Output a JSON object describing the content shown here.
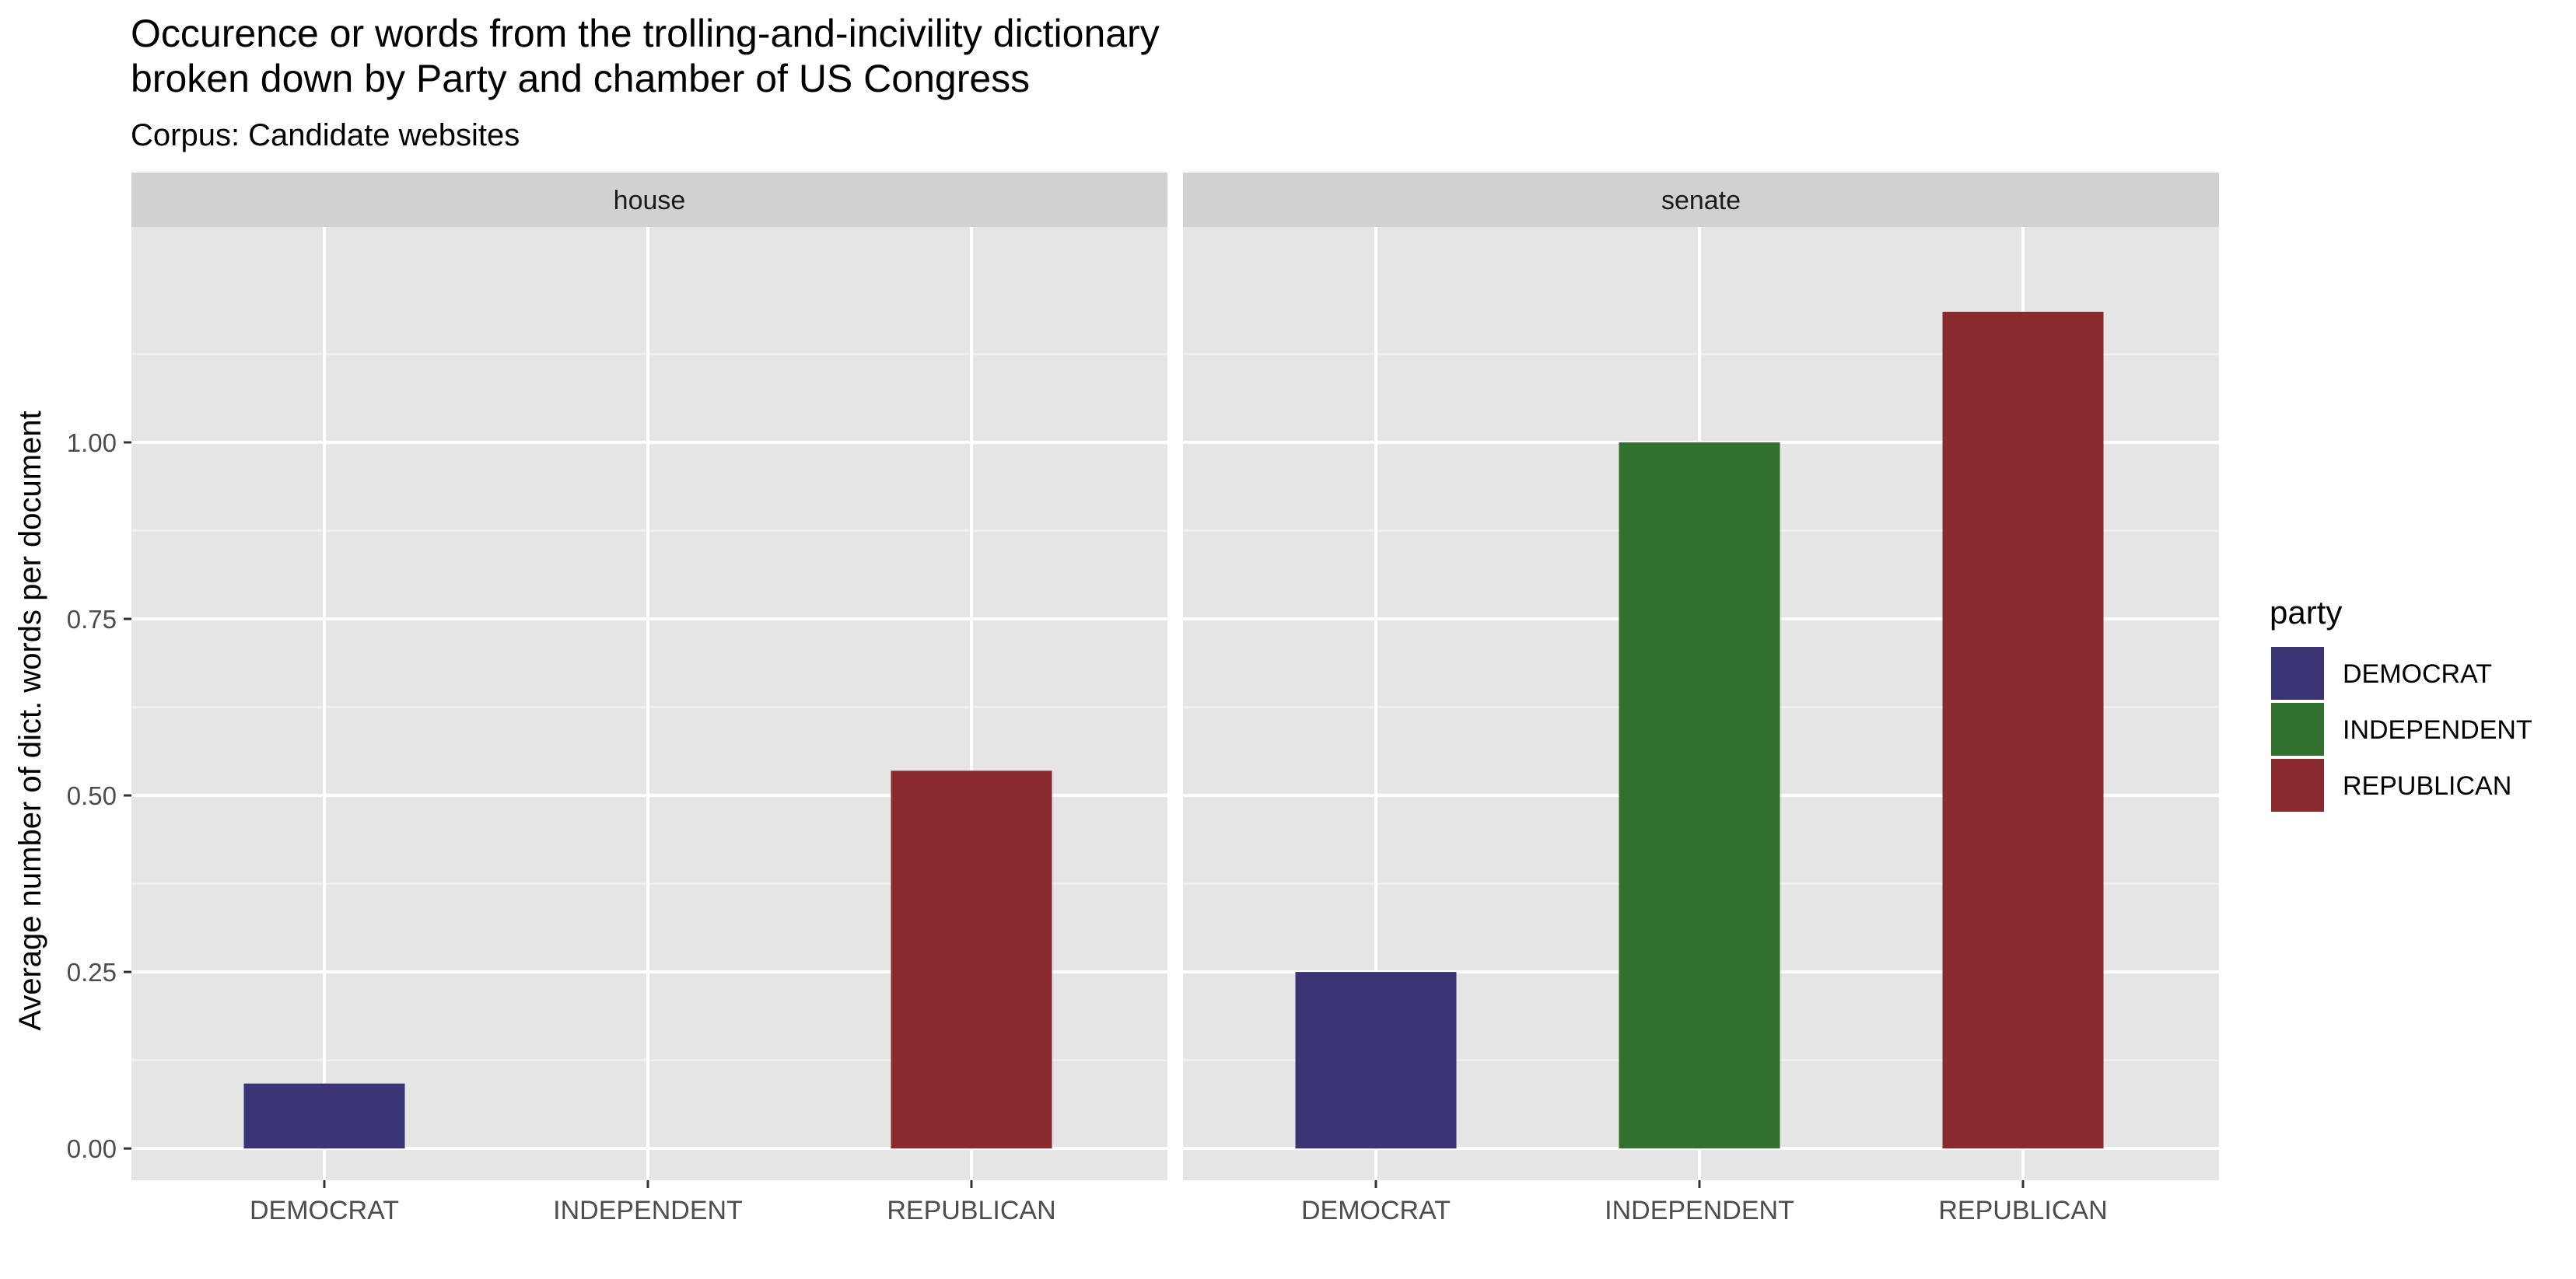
{
  "chart_data": {
    "type": "bar",
    "title": "Occurence or words from the trolling-and-incivility dictionary\nbroken down by Party and chamber of US Congress",
    "title_lines": [
      "Occurence or words from the trolling-and-incivility dictionary",
      "broken down by Party and chamber of US Congress"
    ],
    "subtitle": "Corpus: Candidate websites",
    "xlabel": "",
    "ylabel": "Average number of dict. words per document",
    "ylim": [
      -0.045,
      1.305
    ],
    "yticks": [
      0,
      0.25,
      0.5,
      0.75,
      1.0
    ],
    "ytick_labels": [
      "0.00",
      "0.25",
      "0.50",
      "0.75",
      "1.00"
    ],
    "categories": [
      "DEMOCRAT",
      "INDEPENDENT",
      "REPUBLICAN"
    ],
    "grid": true,
    "legend": {
      "title": "party",
      "position": "right",
      "entries": [
        {
          "name": "DEMOCRAT",
          "color": "#3b3576"
        },
        {
          "name": "INDEPENDENT",
          "color": "#32702f"
        },
        {
          "name": "REPUBLICAN",
          "color": "#882a2e"
        }
      ]
    },
    "panels": [
      {
        "name": "house",
        "values": [
          0.092,
          0,
          0.535
        ]
      },
      {
        "name": "senate",
        "values": [
          0.25,
          1.0,
          1.185
        ]
      }
    ],
    "colors": {
      "panel_background": "#e5e5e5",
      "strip_background": "#d1d1d1",
      "grid_major": "#ffffff",
      "grid_minor": "#f2f2f2"
    }
  }
}
